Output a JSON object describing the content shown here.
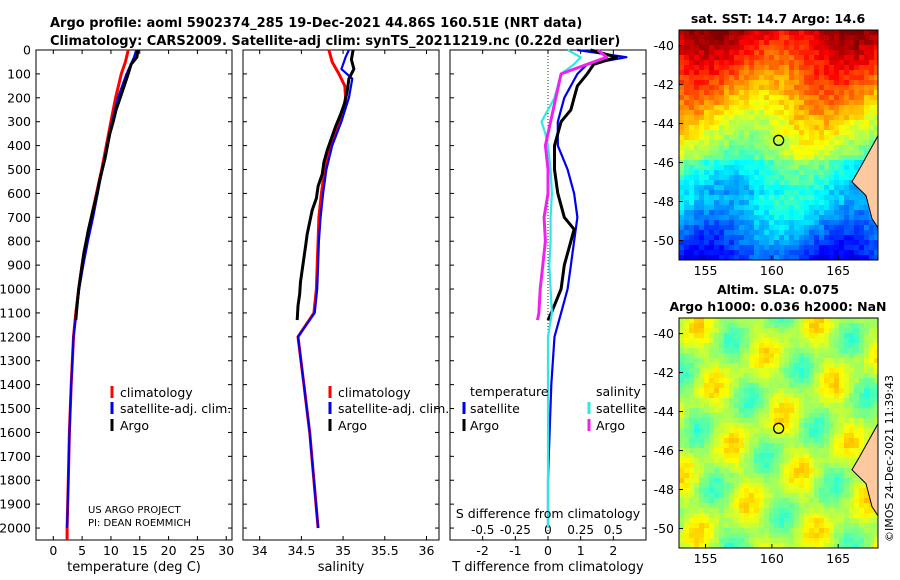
{
  "titles": {
    "line1": "Argo profile: aoml 5902374_285 19-Dec-2021 44.86S 160.51E (NRT data)",
    "line2": "Climatology: CARS2009. Satellite-adj clim: synTS_20211219.nc (0.22d earlier)"
  },
  "credits": {
    "project": "US ARGO PROJECT",
    "pi": "PI: DEAN ROEMMICH",
    "imos": "©IMOS 24-Dec-2021 11:39:43"
  },
  "colors": {
    "climatology": "#ff0000",
    "satellite_adj": "#0000ee",
    "argo": "#000000",
    "sal_satellite": "#33e5e5",
    "sal_argo": "#ee22ee"
  },
  "chart_data": [
    {
      "type": "line",
      "id": "temperature",
      "xlabel": "temperature (deg C)",
      "ylabel": "",
      "xlim": [
        -3,
        31
      ],
      "ylim": [
        2050,
        0
      ],
      "xticks": [
        "0",
        "5",
        "10",
        "15",
        "20",
        "25",
        "30"
      ],
      "yticks": [
        "0",
        "100",
        "200",
        "300",
        "400",
        "500",
        "600",
        "700",
        "800",
        "900",
        "1000",
        "1100",
        "1200",
        "1300",
        "1400",
        "1500",
        "1600",
        "1700",
        "1800",
        "1900",
        "2000"
      ],
      "legend": [
        "climatology",
        "satellite-adj. clim.",
        "Argo"
      ],
      "series": [
        {
          "name": "climatology",
          "depth": [
            0,
            50,
            100,
            200,
            300,
            400,
            500,
            600,
            700,
            800,
            900,
            1000,
            1100,
            1200,
            1400,
            1600,
            1800,
            2000,
            2050
          ],
          "values": [
            13.0,
            12.5,
            11.8,
            10.8,
            10.0,
            9.2,
            8.4,
            7.5,
            6.6,
            5.8,
            5.0,
            4.4,
            3.9,
            3.5,
            3.1,
            2.8,
            2.6,
            2.4,
            2.4
          ]
        },
        {
          "name": "satellite-adj. clim.",
          "depth": [
            0,
            30,
            100,
            200,
            300,
            400,
            500,
            600,
            700,
            800,
            900,
            1000,
            1100,
            1200,
            1400,
            1600,
            1800,
            2000
          ],
          "values": [
            14.4,
            14.0,
            12.7,
            11.2,
            10.2,
            9.3,
            8.5,
            7.7,
            6.9,
            6.0,
            5.2,
            4.5,
            4.0,
            3.5,
            3.1,
            2.8,
            2.6,
            2.4
          ]
        },
        {
          "name": "Argo",
          "depth": [
            0,
            30,
            60,
            100,
            150,
            200,
            250,
            300,
            350,
            400,
            450,
            500,
            550,
            600,
            650,
            700,
            750,
            800,
            850,
            900,
            950,
            1000,
            1050,
            1100,
            1130
          ],
          "values": [
            14.7,
            14.5,
            13.5,
            13.0,
            12.3,
            11.6,
            10.9,
            10.4,
            9.8,
            9.4,
            9.0,
            8.5,
            8.0,
            7.6,
            7.1,
            6.6,
            6.1,
            5.7,
            5.3,
            5.0,
            4.7,
            4.4,
            4.2,
            4.0,
            3.9
          ]
        }
      ]
    },
    {
      "type": "line",
      "id": "salinity",
      "xlabel": "salinity",
      "ylabel": "",
      "xlim": [
        33.8,
        36.15
      ],
      "ylim": [
        2050,
        0
      ],
      "xticks": [
        "34",
        "34.5",
        "35",
        "35.5",
        "36"
      ],
      "legend": [
        "climatology",
        "satellite-adj. clim.",
        "Argo"
      ],
      "series": [
        {
          "name": "climatology",
          "depth": [
            0,
            50,
            100,
            150,
            200,
            300,
            400,
            500,
            600,
            700,
            800,
            900,
            1000,
            1100,
            1200,
            1400,
            1600,
            1800,
            2000
          ],
          "values": [
            34.83,
            34.87,
            34.95,
            35.02,
            35.03,
            34.97,
            34.85,
            34.78,
            34.74,
            34.71,
            34.7,
            34.69,
            34.68,
            34.65,
            34.46,
            34.53,
            34.6,
            34.65,
            34.7
          ]
        },
        {
          "name": "satellite-adj. clim.",
          "depth": [
            0,
            30,
            80,
            120,
            200,
            300,
            400,
            500,
            600,
            700,
            800,
            900,
            1000,
            1100,
            1200,
            1400,
            1600,
            1800,
            2000
          ],
          "values": [
            35.07,
            35.03,
            34.98,
            35.11,
            35.07,
            34.98,
            34.87,
            34.8,
            34.76,
            34.73,
            34.71,
            34.7,
            34.69,
            34.66,
            34.46,
            34.53,
            34.6,
            34.65,
            34.7
          ]
        },
        {
          "name": "Argo",
          "depth": [
            0,
            40,
            80,
            120,
            170,
            220,
            270,
            320,
            370,
            420,
            470,
            520,
            570,
            620,
            670,
            720,
            770,
            820,
            870,
            920,
            970,
            1020,
            1070,
            1130
          ],
          "values": [
            35.12,
            35.1,
            35.13,
            35.07,
            35.05,
            35.02,
            34.97,
            34.91,
            34.86,
            34.81,
            34.77,
            34.75,
            34.7,
            34.68,
            34.63,
            34.6,
            34.57,
            34.55,
            34.53,
            34.51,
            34.49,
            34.48,
            34.46,
            34.45
          ]
        }
      ]
    },
    {
      "type": "line",
      "id": "difference",
      "xlabel": "T difference from climatology",
      "xlabel_top": "S difference from climatology",
      "xlim": [
        -3,
        3
      ],
      "ylim": [
        2050,
        0
      ],
      "xticks": [
        "-2",
        "-1",
        "0",
        "1",
        "2"
      ],
      "s_xticks": [
        "-0.5",
        "-0.25",
        "0",
        "0.25",
        "0.5"
      ],
      "legend_temperature": {
        "title": "temperature",
        "items": [
          "satellite",
          "Argo"
        ]
      },
      "legend_salinity": {
        "title": "salinity",
        "items": [
          "satellite",
          "Argo"
        ]
      },
      "series": [
        {
          "name": "temperature satellite",
          "depth": [
            0,
            30,
            60,
            100,
            200,
            300,
            400,
            500,
            600,
            700,
            800,
            900,
            1000,
            1100,
            1200,
            1400,
            1600,
            1800,
            2000
          ],
          "values": [
            0.9,
            2.4,
            1.2,
            0.9,
            0.5,
            0.3,
            0.3,
            0.6,
            0.8,
            0.9,
            0.8,
            0.7,
            0.6,
            0.4,
            0.2,
            0.1,
            0.05,
            0.0,
            0.0
          ]
        },
        {
          "name": "temperature Argo",
          "depth": [
            0,
            30,
            60,
            100,
            150,
            200,
            250,
            300,
            350,
            400,
            500,
            600,
            700,
            750,
            800,
            900,
            1000,
            1100,
            1130
          ],
          "values": [
            1.3,
            2.1,
            1.4,
            1.2,
            0.9,
            0.8,
            0.7,
            0.4,
            0.3,
            0.2,
            0.2,
            0.3,
            0.5,
            0.8,
            0.7,
            0.5,
            0.4,
            0.1,
            0.0
          ]
        },
        {
          "name": "salinity satellite",
          "depth": [
            0,
            30,
            60,
            100,
            200,
            300,
            350,
            400,
            500,
            600,
            700,
            800,
            900,
            1000,
            1100,
            1200,
            1400,
            1600,
            1800,
            2000
          ],
          "values": [
            0.15,
            0.25,
            0.2,
            0.1,
            0.05,
            -0.05,
            -0.02,
            0.0,
            0.02,
            0.03,
            0.02,
            0.02,
            0.01,
            0.02,
            0.03,
            0.0,
            0.0,
            0.0,
            0.0,
            0.0
          ]
        },
        {
          "name": "salinity Argo",
          "depth": [
            0,
            30,
            60,
            100,
            200,
            300,
            400,
            500,
            600,
            700,
            800,
            900,
            1000,
            1100,
            1130
          ],
          "values": [
            0.38,
            0.45,
            0.3,
            0.1,
            0.06,
            0.02,
            -0.02,
            0.0,
            0.0,
            -0.03,
            -0.02,
            -0.04,
            -0.06,
            -0.07,
            -0.08
          ]
        }
      ]
    },
    {
      "type": "heatmap",
      "id": "sst-map",
      "title": "sat. SST: 14.7 Argo: 14.6",
      "xticks": [
        "155",
        "160",
        "165"
      ],
      "yticks": [
        "-40",
        "-42",
        "-44",
        "-46",
        "-48",
        "-50"
      ],
      "xlim": [
        153,
        168
      ],
      "ylim": [
        -51,
        -39.2
      ],
      "profile_location": [
        160.51,
        -44.86
      ]
    },
    {
      "type": "heatmap",
      "id": "sla-map",
      "title": "Altim. SLA: 0.075",
      "subtitle": "Argo h1000: 0.036 h2000: NaN",
      "xticks": [
        "155",
        "160",
        "165"
      ],
      "yticks": [
        "-40",
        "-42",
        "-44",
        "-46",
        "-48",
        "-50"
      ],
      "xlim": [
        153,
        168
      ],
      "ylim": [
        -51,
        -39.2
      ],
      "profile_location": [
        160.51,
        -44.86
      ]
    }
  ]
}
